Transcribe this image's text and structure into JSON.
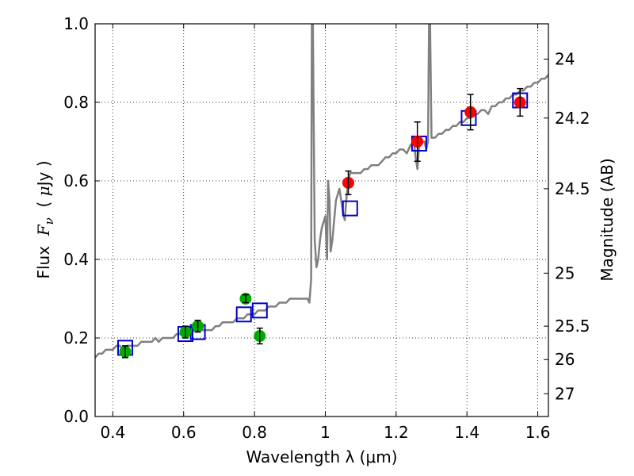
{
  "chart_data": {
    "type": "scatter",
    "xlabel": "Wavelength  λ (μm)",
    "ylabel_parts": [
      "Flux  ",
      "F",
      "ν",
      "  ( ",
      "μ",
      "Jy )"
    ],
    "y2label": "Magnitude (AB)",
    "xlim": [
      0.35,
      1.63
    ],
    "ylim": [
      0.0,
      1.0
    ],
    "grid": true,
    "x_ticks": [
      0.4,
      0.6,
      0.8,
      1.0,
      1.2,
      1.4,
      1.6
    ],
    "x_tick_labels": [
      "0.4",
      "0.6",
      "0.8",
      "1",
      "1.2",
      "1.4",
      "1.6"
    ],
    "y_ticks": [
      0.0,
      0.2,
      0.4,
      0.6,
      0.8,
      1.0
    ],
    "y_tick_labels": [
      "0.0",
      "0.2",
      "0.4",
      "0.6",
      "0.8",
      "1.0"
    ],
    "right_ticks": [
      {
        "label": "24",
        "flux": 0.91
      },
      {
        "label": "24.2",
        "flux": 0.76
      },
      {
        "label": "24.5",
        "flux": 0.58
      },
      {
        "label": "25",
        "flux": 0.365
      },
      {
        "label": "25.5",
        "flux": 0.23
      },
      {
        "label": "26",
        "flux": 0.145
      },
      {
        "label": "27",
        "flux": 0.058
      }
    ],
    "series": [
      {
        "kind": "line",
        "color": "#808080",
        "x": [
          0.35,
          0.36,
          0.37,
          0.38,
          0.39,
          0.4,
          0.41,
          0.42,
          0.43,
          0.44,
          0.45,
          0.46,
          0.47,
          0.48,
          0.49,
          0.5,
          0.51,
          0.52,
          0.53,
          0.54,
          0.55,
          0.56,
          0.57,
          0.58,
          0.59,
          0.6,
          0.61,
          0.62,
          0.63,
          0.64,
          0.65,
          0.66,
          0.67,
          0.68,
          0.69,
          0.7,
          0.71,
          0.72,
          0.73,
          0.74,
          0.75,
          0.76,
          0.77,
          0.78,
          0.79,
          0.8,
          0.81,
          0.82,
          0.83,
          0.84,
          0.85,
          0.86,
          0.87,
          0.88,
          0.89,
          0.9,
          0.91,
          0.92,
          0.93,
          0.94,
          0.95,
          0.955,
          0.96,
          0.962,
          0.965,
          0.97,
          0.975,
          0.98,
          0.985,
          0.99,
          1.0,
          1.005,
          1.008,
          1.012,
          1.015,
          1.02,
          1.03,
          1.04,
          1.05,
          1.055,
          1.06,
          1.065,
          1.07,
          1.08,
          1.09,
          1.1,
          1.11,
          1.12,
          1.13,
          1.14,
          1.15,
          1.16,
          1.17,
          1.18,
          1.19,
          1.2,
          1.21,
          1.22,
          1.23,
          1.24,
          1.25,
          1.255,
          1.26,
          1.265,
          1.27,
          1.28,
          1.285,
          1.29,
          1.293,
          1.296,
          1.3,
          1.31,
          1.32,
          1.33,
          1.34,
          1.35,
          1.36,
          1.37,
          1.38,
          1.39,
          1.4,
          1.41,
          1.42,
          1.43,
          1.44,
          1.45,
          1.46,
          1.47,
          1.48,
          1.49,
          1.5,
          1.51,
          1.52,
          1.53,
          1.54,
          1.55,
          1.56,
          1.57,
          1.58,
          1.59,
          1.6,
          1.61,
          1.62,
          1.63
        ],
        "y": [
          0.15,
          0.16,
          0.16,
          0.17,
          0.17,
          0.17,
          0.18,
          0.18,
          0.17,
          0.18,
          0.18,
          0.18,
          0.18,
          0.19,
          0.19,
          0.19,
          0.19,
          0.2,
          0.19,
          0.2,
          0.2,
          0.2,
          0.2,
          0.21,
          0.21,
          0.21,
          0.21,
          0.21,
          0.22,
          0.22,
          0.22,
          0.22,
          0.22,
          0.22,
          0.23,
          0.23,
          0.24,
          0.24,
          0.24,
          0.24,
          0.25,
          0.25,
          0.25,
          0.26,
          0.26,
          0.26,
          0.27,
          0.27,
          0.27,
          0.28,
          0.28,
          0.28,
          0.29,
          0.29,
          0.29,
          0.3,
          0.3,
          0.3,
          0.3,
          0.3,
          0.3,
          0.29,
          0.35,
          1.0,
          1.0,
          0.45,
          0.38,
          0.4,
          0.45,
          0.48,
          0.51,
          0.4,
          0.6,
          0.55,
          0.42,
          0.45,
          0.55,
          0.58,
          0.52,
          0.5,
          0.56,
          0.6,
          0.62,
          0.62,
          0.62,
          0.62,
          0.63,
          0.63,
          0.64,
          0.64,
          0.64,
          0.65,
          0.66,
          0.66,
          0.67,
          0.67,
          0.68,
          0.68,
          0.67,
          0.69,
          0.7,
          0.66,
          0.63,
          0.69,
          0.7,
          0.7,
          0.68,
          0.7,
          1.0,
          1.0,
          0.71,
          0.71,
          0.72,
          0.72,
          0.73,
          0.73,
          0.74,
          0.74,
          0.75,
          0.75,
          0.76,
          0.76,
          0.77,
          0.77,
          0.78,
          0.78,
          0.77,
          0.79,
          0.79,
          0.8,
          0.8,
          0.81,
          0.81,
          0.82,
          0.82,
          0.83,
          0.83,
          0.84,
          0.84,
          0.85,
          0.85,
          0.86,
          0.86,
          0.87
        ]
      },
      {
        "kind": "open-square",
        "color": "#0000cc",
        "x": [
          0.435,
          0.605,
          0.64,
          0.77,
          0.815,
          1.07,
          1.265,
          1.405,
          1.55
        ],
        "y": [
          0.175,
          0.21,
          0.215,
          0.26,
          0.27,
          0.53,
          0.695,
          0.76,
          0.805
        ]
      },
      {
        "kind": "filled-circle-errorbar",
        "color": "#00aa00",
        "x": [
          0.435,
          0.605,
          0.64,
          0.775,
          0.815
        ],
        "y": [
          0.165,
          0.215,
          0.23,
          0.3,
          0.205
        ],
        "err": [
          0.015,
          0.015,
          0.015,
          0.01,
          0.02
        ]
      },
      {
        "kind": "filled-circle-errorbar",
        "color": "#ff0000",
        "x": [
          1.065,
          1.26,
          1.41,
          1.55
        ],
        "y": [
          0.595,
          0.7,
          0.775,
          0.8
        ],
        "err": [
          0.03,
          0.05,
          0.045,
          0.035
        ]
      }
    ]
  }
}
